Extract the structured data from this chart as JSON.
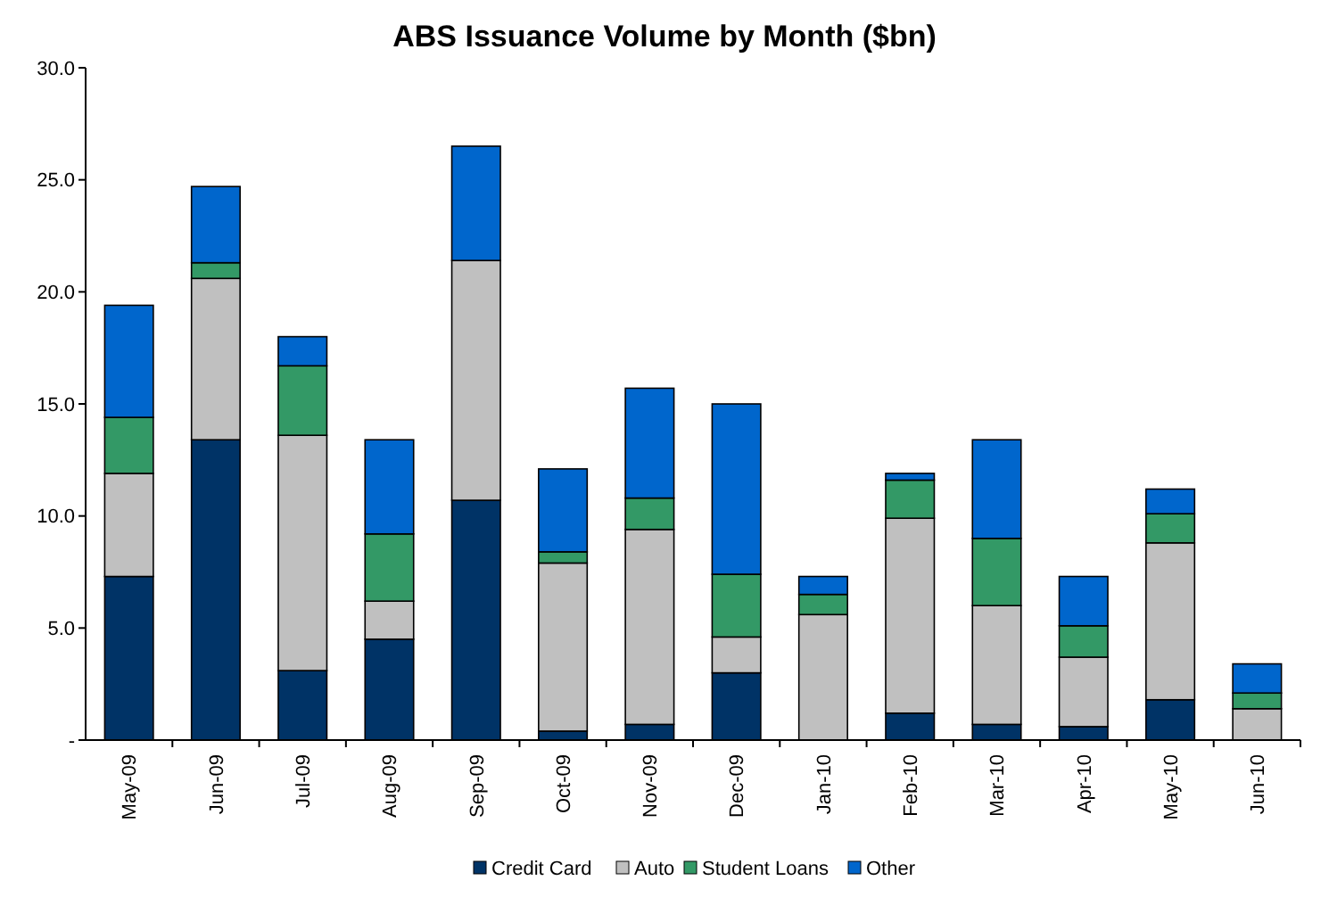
{
  "chart_data": {
    "type": "bar",
    "title": "ABS Issuance Volume by Month ($bn)",
    "stacked": true,
    "legend": "bottom",
    "categories": [
      "May-09",
      "Jun-09",
      "Jul-09",
      "Aug-09",
      "Sep-09",
      "Oct-09",
      "Nov-09",
      "Dec-09",
      "Jan-10",
      "Feb-10",
      "Mar-10",
      "Apr-10",
      "May-10",
      "Jun-10"
    ],
    "ylim": [
      0,
      30
    ],
    "yticks": [
      {
        "value": 0,
        "label": "-"
      },
      {
        "value": 5,
        "label": "5.0"
      },
      {
        "value": 10,
        "label": "10.0"
      },
      {
        "value": 15,
        "label": "15.0"
      },
      {
        "value": 20,
        "label": "20.0"
      },
      {
        "value": 25,
        "label": "25.0"
      },
      {
        "value": 30,
        "label": "30.0"
      }
    ],
    "series": [
      {
        "name": "Credit Card",
        "color": "#003366",
        "values": [
          7.3,
          13.4,
          3.1,
          4.5,
          10.7,
          0.4,
          0.7,
          3.0,
          0,
          1.2,
          0.7,
          0.6,
          1.8,
          0
        ]
      },
      {
        "name": "Auto",
        "color": "#c0c0c0",
        "values": [
          4.6,
          7.2,
          10.5,
          1.7,
          10.7,
          7.5,
          8.7,
          1.6,
          5.6,
          8.7,
          5.3,
          3.1,
          7.0,
          1.4
        ]
      },
      {
        "name": "Student Loans",
        "color": "#339966",
        "values": [
          2.5,
          0.7,
          3.1,
          3.0,
          0,
          0.5,
          1.4,
          2.8,
          0.9,
          1.7,
          3.0,
          1.4,
          1.3,
          0.7
        ]
      },
      {
        "name": "Other",
        "color": "#0066cc",
        "values": [
          5.0,
          3.4,
          1.3,
          4.2,
          5.1,
          3.7,
          4.9,
          7.6,
          0.8,
          0.3,
          4.4,
          2.2,
          1.1,
          1.3
        ]
      }
    ]
  }
}
